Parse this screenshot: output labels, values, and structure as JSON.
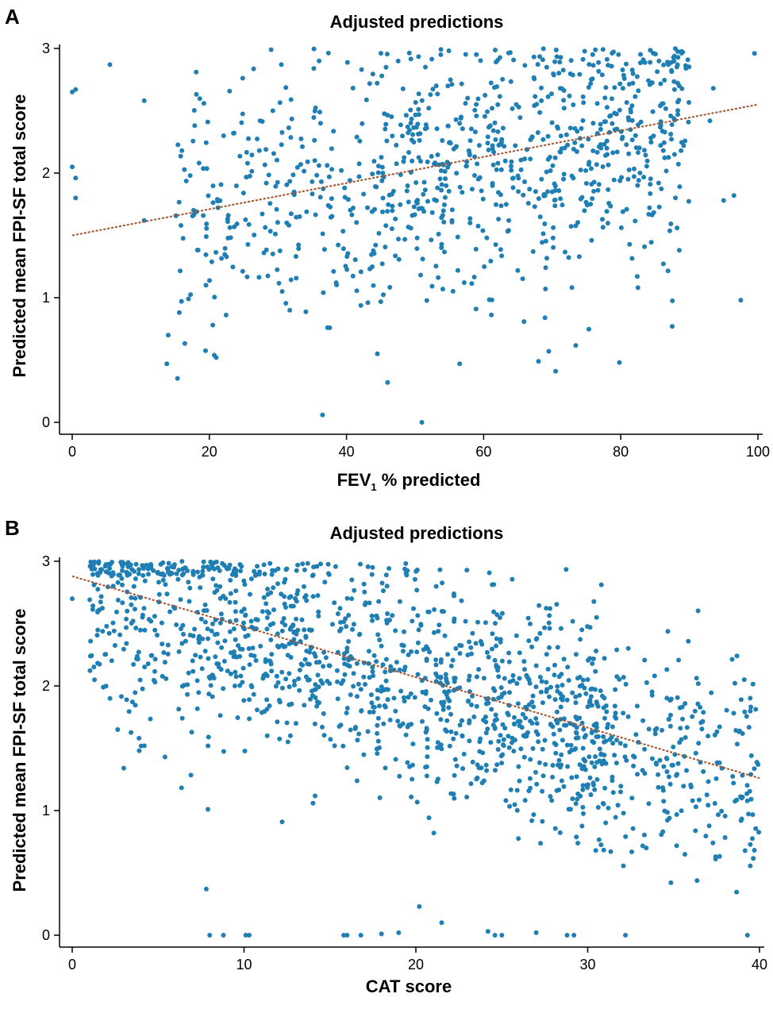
{
  "chart_data": [
    {
      "type": "scatter",
      "panel_letter": "A",
      "title": "Adjusted predictions",
      "xlabel": "FEV",
      "xlabel_subscript": "1",
      "xlabel_suffix": " % predicted",
      "ylabel": "Predicted mean FPI-SF total score",
      "xlim": [
        0,
        100
      ],
      "ylim": [
        0,
        3
      ],
      "xticks": [
        0,
        20,
        40,
        60,
        80,
        100
      ],
      "yticks": [
        0,
        1,
        2,
        3
      ],
      "grid": false,
      "point_color": "#1f7fb4",
      "trend_color": "#a0522d",
      "trendline": {
        "style": "dashed",
        "x": [
          0,
          100
        ],
        "y": [
          1.5,
          2.55
        ]
      },
      "point_count": 900,
      "points_outliers": [
        [
          0,
          2.65
        ],
        [
          0.5,
          2.67
        ],
        [
          0,
          2.05
        ],
        [
          0.5,
          1.96
        ],
        [
          0.5,
          1.8
        ],
        [
          5.5,
          2.87
        ],
        [
          10.5,
          2.58
        ],
        [
          10.5,
          1.62
        ],
        [
          13.8,
          0.47
        ],
        [
          14,
          0.7
        ],
        [
          18.5,
          2.08
        ],
        [
          19.2,
          2.56
        ],
        [
          19.5,
          1.1
        ],
        [
          20.5,
          0.78
        ],
        [
          21,
          0.52
        ],
        [
          29,
          2.99
        ],
        [
          30.5,
          2.87
        ],
        [
          36.5,
          0.06
        ],
        [
          51,
          0
        ],
        [
          44.5,
          0.55
        ],
        [
          46,
          0.32
        ],
        [
          56.5,
          0.47
        ],
        [
          68,
          0.49
        ],
        [
          69.5,
          0.57
        ],
        [
          70.5,
          0.41
        ],
        [
          79.8,
          0.48
        ],
        [
          82.5,
          1.08
        ],
        [
          87.5,
          0.77
        ],
        [
          95,
          1.78
        ],
        [
          96.5,
          1.82
        ],
        [
          97.5,
          0.98
        ],
        [
          99.5,
          2.96
        ],
        [
          93.5,
          2.68
        ],
        [
          93,
          2.42
        ]
      ]
    },
    {
      "type": "scatter",
      "panel_letter": "B",
      "title": "Adjusted predictions",
      "xlabel": "CAT score",
      "ylabel": "Predicted mean FPI-SF total score",
      "xlim": [
        0,
        40
      ],
      "ylim": [
        0,
        3
      ],
      "xticks": [
        0,
        10,
        20,
        30,
        40
      ],
      "yticks": [
        0,
        1,
        2,
        3
      ],
      "grid": false,
      "point_color": "#1f7fb4",
      "trend_color": "#a0522d",
      "trendline": {
        "style": "dashed",
        "x": [
          0,
          40
        ],
        "y": [
          2.88,
          1.26
        ]
      },
      "point_count": 1500,
      "points_outliers": [
        [
          8,
          0
        ],
        [
          8.8,
          0
        ],
        [
          10.1,
          0
        ],
        [
          10.3,
          0
        ],
        [
          15.8,
          0
        ],
        [
          16,
          0
        ],
        [
          16.8,
          0
        ],
        [
          18,
          0.01
        ],
        [
          19,
          0.02
        ],
        [
          24.2,
          0.03
        ],
        [
          24.6,
          0
        ],
        [
          25,
          0
        ],
        [
          27,
          0.02
        ],
        [
          28.8,
          0
        ],
        [
          29.2,
          0
        ],
        [
          32.2,
          0
        ],
        [
          39.3,
          0
        ],
        [
          20.2,
          0.23
        ],
        [
          21.5,
          0.1
        ],
        [
          7.8,
          0.37
        ],
        [
          7.9,
          1.01
        ],
        [
          5.4,
          1.43
        ],
        [
          3.9,
          1.48
        ],
        [
          4.2,
          1.52
        ],
        [
          3,
          1.34
        ],
        [
          1.3,
          2.05
        ],
        [
          2.2,
          1.9
        ],
        [
          0,
          2.7
        ]
      ]
    }
  ]
}
